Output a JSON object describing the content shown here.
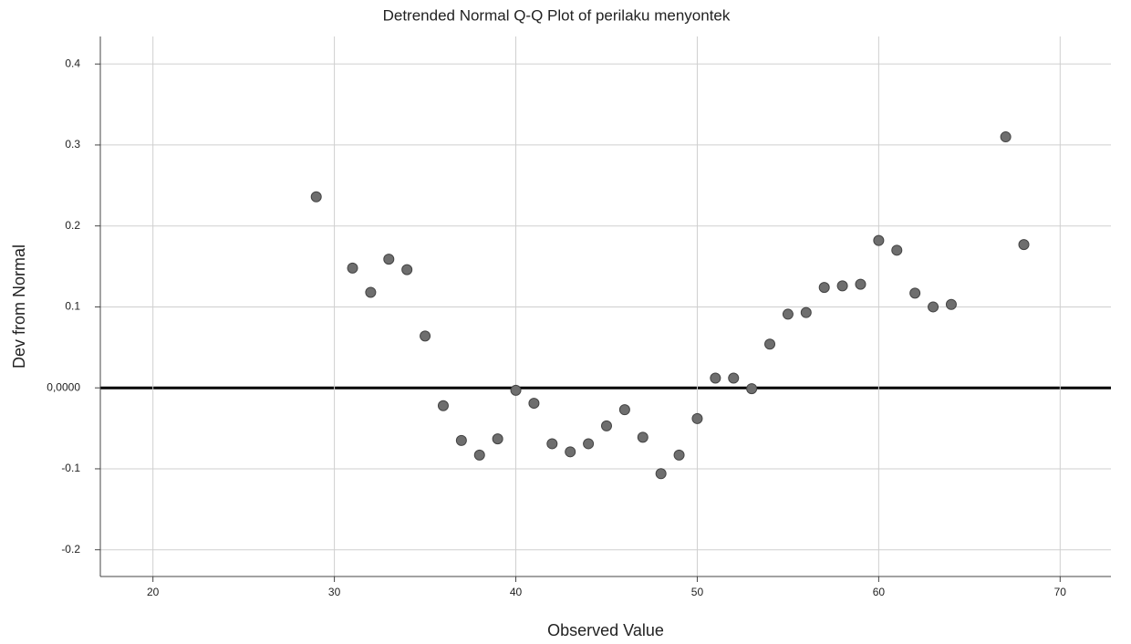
{
  "chart_data": {
    "type": "scatter",
    "title": "Detrended Normal Q-Q Plot of perilaku menyontek",
    "x_label": "Observed Value",
    "y_label": "Dev from Normal",
    "color": "#6e6e6e",
    "grid": true,
    "x": [
      29,
      31,
      32,
      33,
      34,
      35,
      36,
      37,
      38,
      39,
      40,
      41,
      42,
      43,
      44,
      45,
      46,
      47,
      48,
      49,
      50,
      51,
      52,
      53,
      54,
      55,
      56,
      57,
      58,
      59,
      60,
      61,
      62,
      63,
      64,
      67,
      68
    ],
    "values": [
      0.236,
      0.148,
      0.118,
      0.159,
      0.146,
      0.064,
      -0.022,
      -0.065,
      -0.083,
      -0.063,
      -0.003,
      -0.019,
      -0.069,
      -0.079,
      -0.069,
      -0.047,
      -0.027,
      -0.061,
      -0.106,
      -0.083,
      -0.038,
      0.012,
      0.012,
      -0.001,
      0.054,
      0.091,
      0.093,
      0.124,
      0.126,
      0.128,
      0.182,
      0.17,
      0.117,
      0.1,
      0.103,
      0.31,
      0.177
    ],
    "xlim": [
      17.1,
      72.8
    ],
    "xticks": [
      20,
      30,
      40,
      50,
      60,
      70
    ],
    "ylim": [
      -0.233,
      0.434
    ],
    "yticks": [
      0.4,
      0.3,
      0.2,
      0.1,
      {
        "value": 0,
        "label": "0,0000"
      },
      -0.1,
      -0.2
    ]
  }
}
